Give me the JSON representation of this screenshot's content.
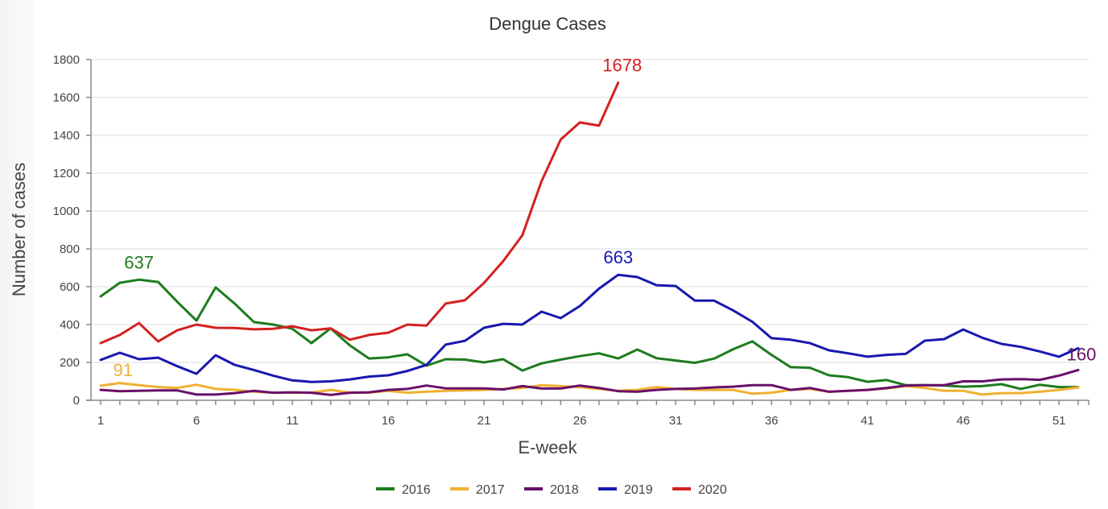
{
  "chart_data": {
    "type": "line",
    "title": "Dengue Cases",
    "xlabel": "E-week",
    "ylabel": "Number of cases",
    "xlim": [
      1,
      52
    ],
    "ylim": [
      0,
      1800
    ],
    "yticks": [
      0,
      200,
      400,
      600,
      800,
      1000,
      1200,
      1400,
      1600,
      1800
    ],
    "xticks_labeled": [
      1,
      6,
      11,
      16,
      21,
      26,
      31,
      36,
      41,
      46,
      51
    ],
    "grid": "horizontal",
    "legend_position": "bottom",
    "x": [
      1,
      2,
      3,
      4,
      5,
      6,
      7,
      8,
      9,
      10,
      11,
      12,
      13,
      14,
      15,
      16,
      17,
      18,
      19,
      20,
      21,
      22,
      23,
      24,
      25,
      26,
      27,
      28,
      29,
      30,
      31,
      32,
      33,
      34,
      35,
      36,
      37,
      38,
      39,
      40,
      41,
      42,
      43,
      44,
      45,
      46,
      47,
      48,
      49,
      50,
      51,
      52
    ],
    "series": [
      {
        "name": "2016",
        "color": "#1e7b1e",
        "values": [
          549,
          621,
          637,
          625,
          520,
          421,
          596,
          510,
          413,
          400,
          378,
          302,
          380,
          290,
          221,
          227,
          243,
          183,
          217,
          215,
          200,
          217,
          157,
          195,
          215,
          233,
          248,
          221,
          268,
          222,
          210,
          198,
          220,
          270,
          311,
          240,
          175,
          172,
          132,
          122,
          98,
          107,
          80,
          80,
          78,
          72,
          75,
          85,
          60,
          82,
          70,
          70
        ],
        "annotation": {
          "week": 3,
          "label": "637"
        }
      },
      {
        "name": "2017",
        "color": "#f0b030",
        "values": [
          77,
          91,
          80,
          70,
          65,
          82,
          60,
          55,
          45,
          40,
          40,
          40,
          55,
          40,
          40,
          50,
          40,
          45,
          50,
          52,
          55,
          60,
          65,
          80,
          75,
          70,
          60,
          50,
          55,
          70,
          60,
          55,
          55,
          55,
          35,
          40,
          55,
          60,
          45,
          50,
          55,
          62,
          75,
          65,
          50,
          50,
          30,
          38,
          38,
          45,
          55,
          68
        ],
        "annotation": {
          "week": 2,
          "label": "91"
        }
      },
      {
        "name": "2018",
        "color": "#6a0f6a",
        "values": [
          55,
          48,
          50,
          52,
          52,
          30,
          30,
          38,
          50,
          40,
          42,
          40,
          28,
          40,
          42,
          55,
          60,
          78,
          63,
          63,
          63,
          57,
          75,
          62,
          62,
          78,
          65,
          48,
          45,
          55,
          60,
          62,
          68,
          72,
          80,
          80,
          55,
          65,
          45,
          50,
          55,
          65,
          78,
          80,
          80,
          100,
          100,
          110,
          112,
          108,
          130,
          160
        ],
        "annotation": {
          "week": 52,
          "label": "160"
        }
      },
      {
        "name": "2019",
        "color": "#1818b0",
        "values": [
          213,
          251,
          217,
          225,
          180,
          140,
          238,
          187,
          160,
          130,
          105,
          97,
          100,
          110,
          125,
          132,
          155,
          187,
          294,
          314,
          383,
          404,
          400,
          468,
          434,
          498,
          590,
          663,
          651,
          608,
          604,
          527,
          527,
          475,
          415,
          328,
          320,
          302,
          264,
          248,
          230,
          240,
          245,
          315,
          323,
          374,
          330,
          298,
          282,
          258,
          230,
          275
        ],
        "annotation": {
          "week": 28,
          "label": "663"
        }
      },
      {
        "name": "2020",
        "color": "#d42020",
        "values": [
          302,
          345,
          408,
          311,
          370,
          400,
          383,
          382,
          375,
          378,
          391,
          370,
          380,
          320,
          345,
          357,
          400,
          395,
          511,
          528,
          620,
          735,
          872,
          1157,
          1378,
          1468,
          1451,
          1678
        ],
        "annotation": {
          "week": 28,
          "label": "1678"
        }
      }
    ]
  }
}
